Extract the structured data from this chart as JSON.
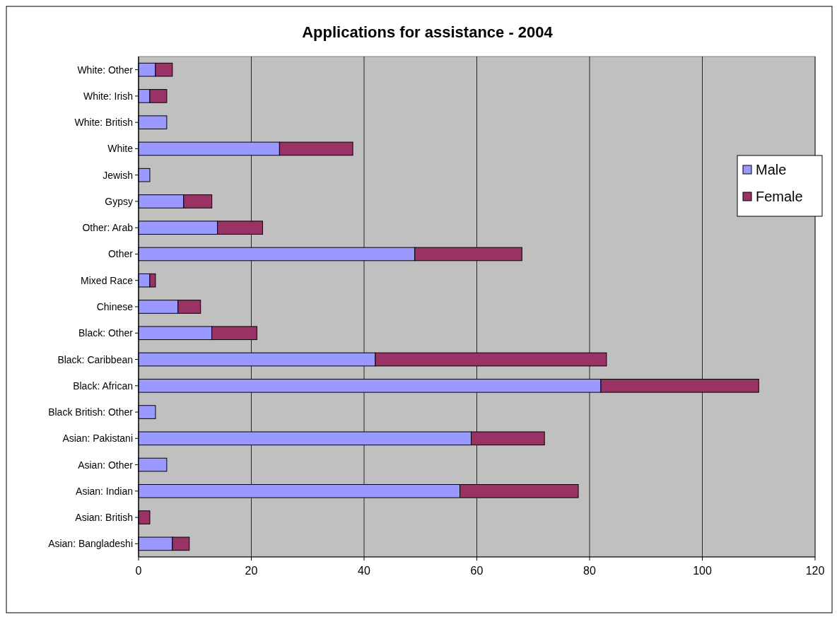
{
  "chart_data": {
    "type": "bar",
    "title": "Applications for assistance - 2004",
    "orientation": "horizontal",
    "stacked": true,
    "categories": [
      "White: Other",
      "White: Irish",
      "White: British",
      "White",
      "Jewish",
      "Gypsy",
      "Other: Arab",
      "Other",
      "Mixed Race",
      "Chinese",
      "Black: Other",
      "Black: Caribbean",
      "Black: African",
      "Black British: Other",
      "Asian: Pakistani",
      "Asian: Other",
      "Asian: Indian",
      "Asian: British",
      "Asian: Bangladeshi"
    ],
    "series": [
      {
        "name": "Male",
        "color": "#9999ff",
        "values": [
          3,
          2,
          5,
          25,
          2,
          8,
          14,
          49,
          2,
          7,
          13,
          42,
          82,
          3,
          59,
          5,
          57,
          0,
          6
        ]
      },
      {
        "name": "Female",
        "color": "#993366",
        "values": [
          3,
          3,
          0,
          13,
          0,
          5,
          8,
          19,
          1,
          4,
          8,
          41,
          28,
          0,
          13,
          0,
          21,
          2,
          3
        ]
      }
    ],
    "xlim": [
      0,
      120
    ],
    "xticks": [
      0,
      20,
      40,
      60,
      80,
      100,
      120
    ],
    "grid": "x",
    "legend": "right"
  }
}
